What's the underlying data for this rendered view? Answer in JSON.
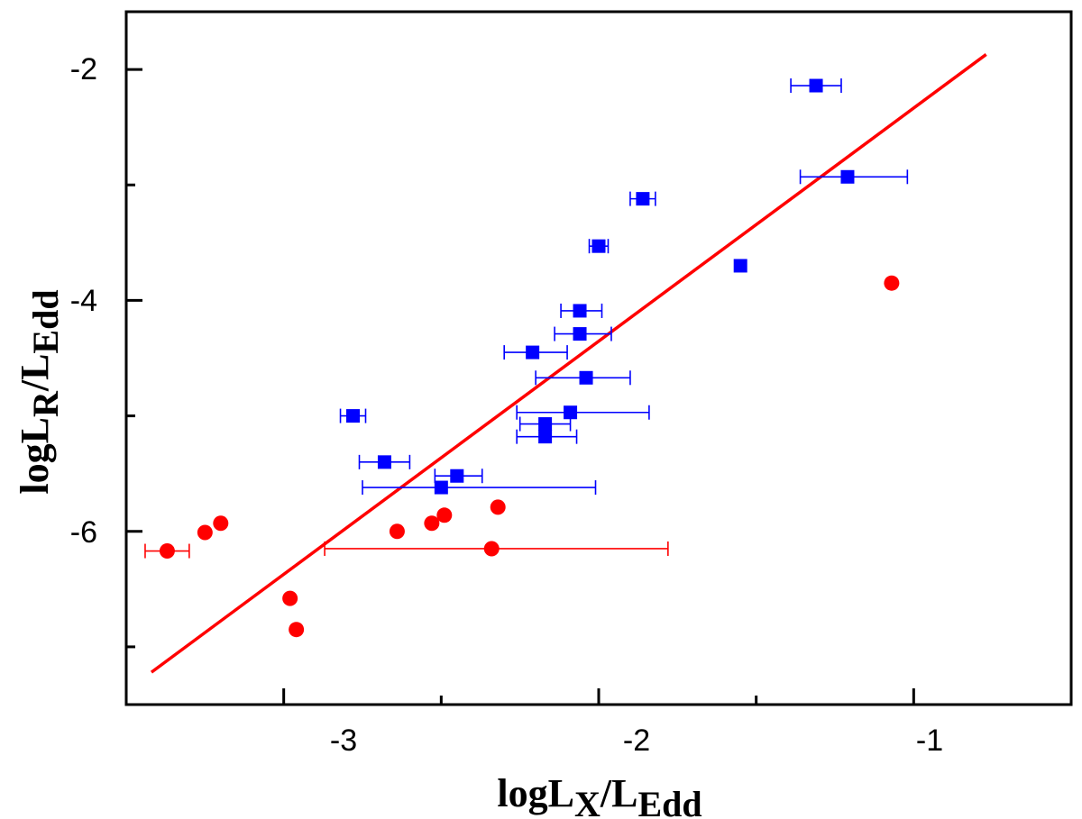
{
  "chart_data": {
    "type": "scatter",
    "x_axis": {
      "label_main": "logL",
      "label_sub": "X",
      "label_rest": "/L",
      "label_sub2": "Edd",
      "range": [
        -3.5,
        -0.5
      ],
      "ticks": [
        -3,
        -2,
        -1
      ],
      "tick_labels": [
        "-3",
        "-2",
        "-1"
      ],
      "minor_ticks": [
        -3.5,
        -2.5,
        -1.5,
        -0.5
      ]
    },
    "y_axis": {
      "label_main": "logL",
      "label_sub": "R",
      "label_rest": "/L",
      "label_sub2": "Edd",
      "range": [
        -7.5,
        -1.5
      ],
      "ticks": [
        -6,
        -4,
        -2
      ],
      "tick_labels": [
        "-6",
        "-4",
        "-2"
      ],
      "minor_ticks": [
        -7,
        -5,
        -3
      ]
    },
    "series": [
      {
        "marker": "square",
        "color": "#0000ff",
        "points": [
          {
            "x": -1.31,
            "y": -2.14,
            "xerr": [
              0.08,
              0.08
            ]
          },
          {
            "x": -1.21,
            "y": -2.93,
            "xerr": [
              0.15,
              0.19
            ]
          },
          {
            "x": -1.86,
            "y": -3.12,
            "xerr": [
              0.04,
              0.04
            ]
          },
          {
            "x": -2.0,
            "y": -3.53,
            "xerr": [
              0.03,
              0.03
            ]
          },
          {
            "x": -1.55,
            "y": -3.7,
            "xerr": null
          },
          {
            "x": -2.06,
            "y": -4.09,
            "xerr": [
              0.06,
              0.07
            ]
          },
          {
            "x": -2.06,
            "y": -4.29,
            "xerr": [
              0.08,
              0.1
            ]
          },
          {
            "x": -2.21,
            "y": -4.45,
            "xerr": [
              0.09,
              0.11
            ]
          },
          {
            "x": -2.04,
            "y": -4.67,
            "xerr": [
              0.16,
              0.14
            ]
          },
          {
            "x": -2.09,
            "y": -4.97,
            "xerr": [
              0.17,
              0.25
            ]
          },
          {
            "x": -2.17,
            "y": -5.07,
            "xerr": [
              0.08,
              0.08
            ]
          },
          {
            "x": -2.17,
            "y": -5.18,
            "xerr": [
              0.09,
              0.1
            ]
          },
          {
            "x": -2.78,
            "y": -5.0,
            "xerr": [
              0.04,
              0.04
            ]
          },
          {
            "x": -2.68,
            "y": -5.4,
            "xerr": [
              0.08,
              0.08
            ]
          },
          {
            "x": -2.45,
            "y": -5.52,
            "xerr": [
              0.07,
              0.08
            ]
          },
          {
            "x": -2.5,
            "y": -5.62,
            "xerr": [
              0.25,
              0.49
            ]
          }
        ]
      },
      {
        "marker": "circle",
        "color": "#ff0000",
        "points": [
          {
            "x": -1.07,
            "y": -3.85,
            "xerr": null
          },
          {
            "x": -2.32,
            "y": -5.79,
            "xerr": null
          },
          {
            "x": -2.49,
            "y": -5.86,
            "xerr": null
          },
          {
            "x": -2.53,
            "y": -5.93,
            "xerr": null
          },
          {
            "x": -2.64,
            "y": -6.0,
            "xerr": null
          },
          {
            "x": -3.2,
            "y": -5.93,
            "xerr": null
          },
          {
            "x": -3.25,
            "y": -6.01,
            "xerr": null
          },
          {
            "x": -3.37,
            "y": -6.17,
            "xerr": [
              0.07,
              0.07
            ]
          },
          {
            "x": -2.34,
            "y": -6.15,
            "xerr": [
              0.53,
              0.56
            ]
          },
          {
            "x": -2.98,
            "y": -6.58,
            "xerr": null
          },
          {
            "x": -2.96,
            "y": -6.85,
            "xerr": null
          }
        ]
      }
    ],
    "fit_line": {
      "color": "#ff0000",
      "x": [
        -3.42,
        -0.77
      ],
      "y": [
        -7.22,
        -1.87
      ]
    }
  }
}
